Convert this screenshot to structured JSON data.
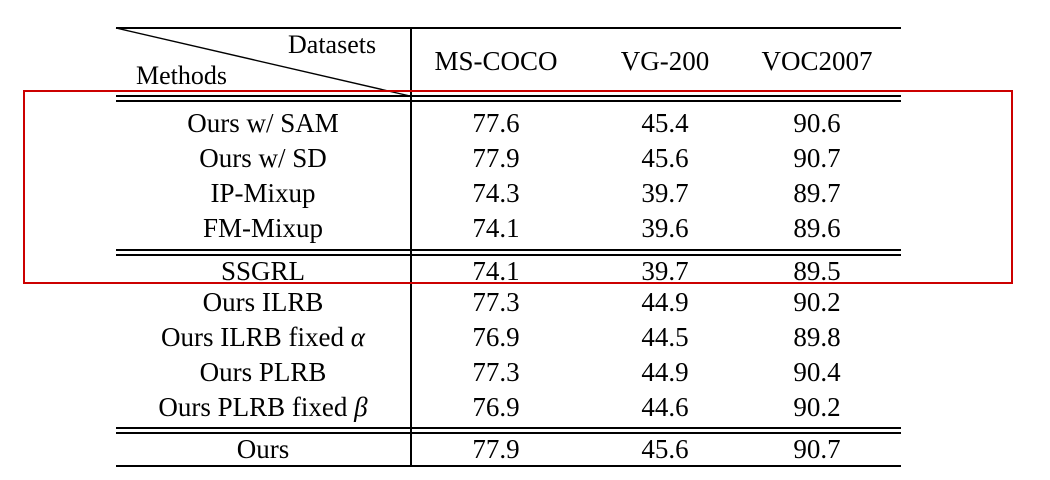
{
  "header": {
    "datasets_label": "Datasets",
    "methods_label": "Methods",
    "columns": [
      "MS-COCO",
      "VG-200",
      "VOC2007"
    ]
  },
  "rows": [
    {
      "method": "Ours w/ SAM",
      "values": [
        "77.6",
        "45.4",
        "90.6"
      ]
    },
    {
      "method": "Ours w/ SD",
      "values": [
        "77.9",
        "45.6",
        "90.7"
      ]
    },
    {
      "method": "IP-Mixup",
      "values": [
        "74.3",
        "39.7",
        "89.7"
      ]
    },
    {
      "method": "FM-Mixup",
      "values": [
        "74.1",
        "39.6",
        "89.6"
      ]
    },
    {
      "method": "SSGRL",
      "values": [
        "74.1",
        "39.7",
        "89.5"
      ]
    },
    {
      "method": "Ours ILRB",
      "values": [
        "77.3",
        "44.9",
        "90.2"
      ]
    },
    {
      "method": "Ours ILRB fixed ",
      "symbol": "α",
      "values": [
        "76.9",
        "44.5",
        "89.8"
      ]
    },
    {
      "method": "Ours PLRB",
      "values": [
        "77.3",
        "44.9",
        "90.4"
      ]
    },
    {
      "method": "Ours PLRB fixed ",
      "symbol": "β",
      "values": [
        "76.9",
        "44.6",
        "90.2"
      ]
    },
    {
      "method": "Ours",
      "values": [
        "77.9",
        "45.6",
        "90.7"
      ]
    }
  ],
  "highlight_color": "#cc0000"
}
